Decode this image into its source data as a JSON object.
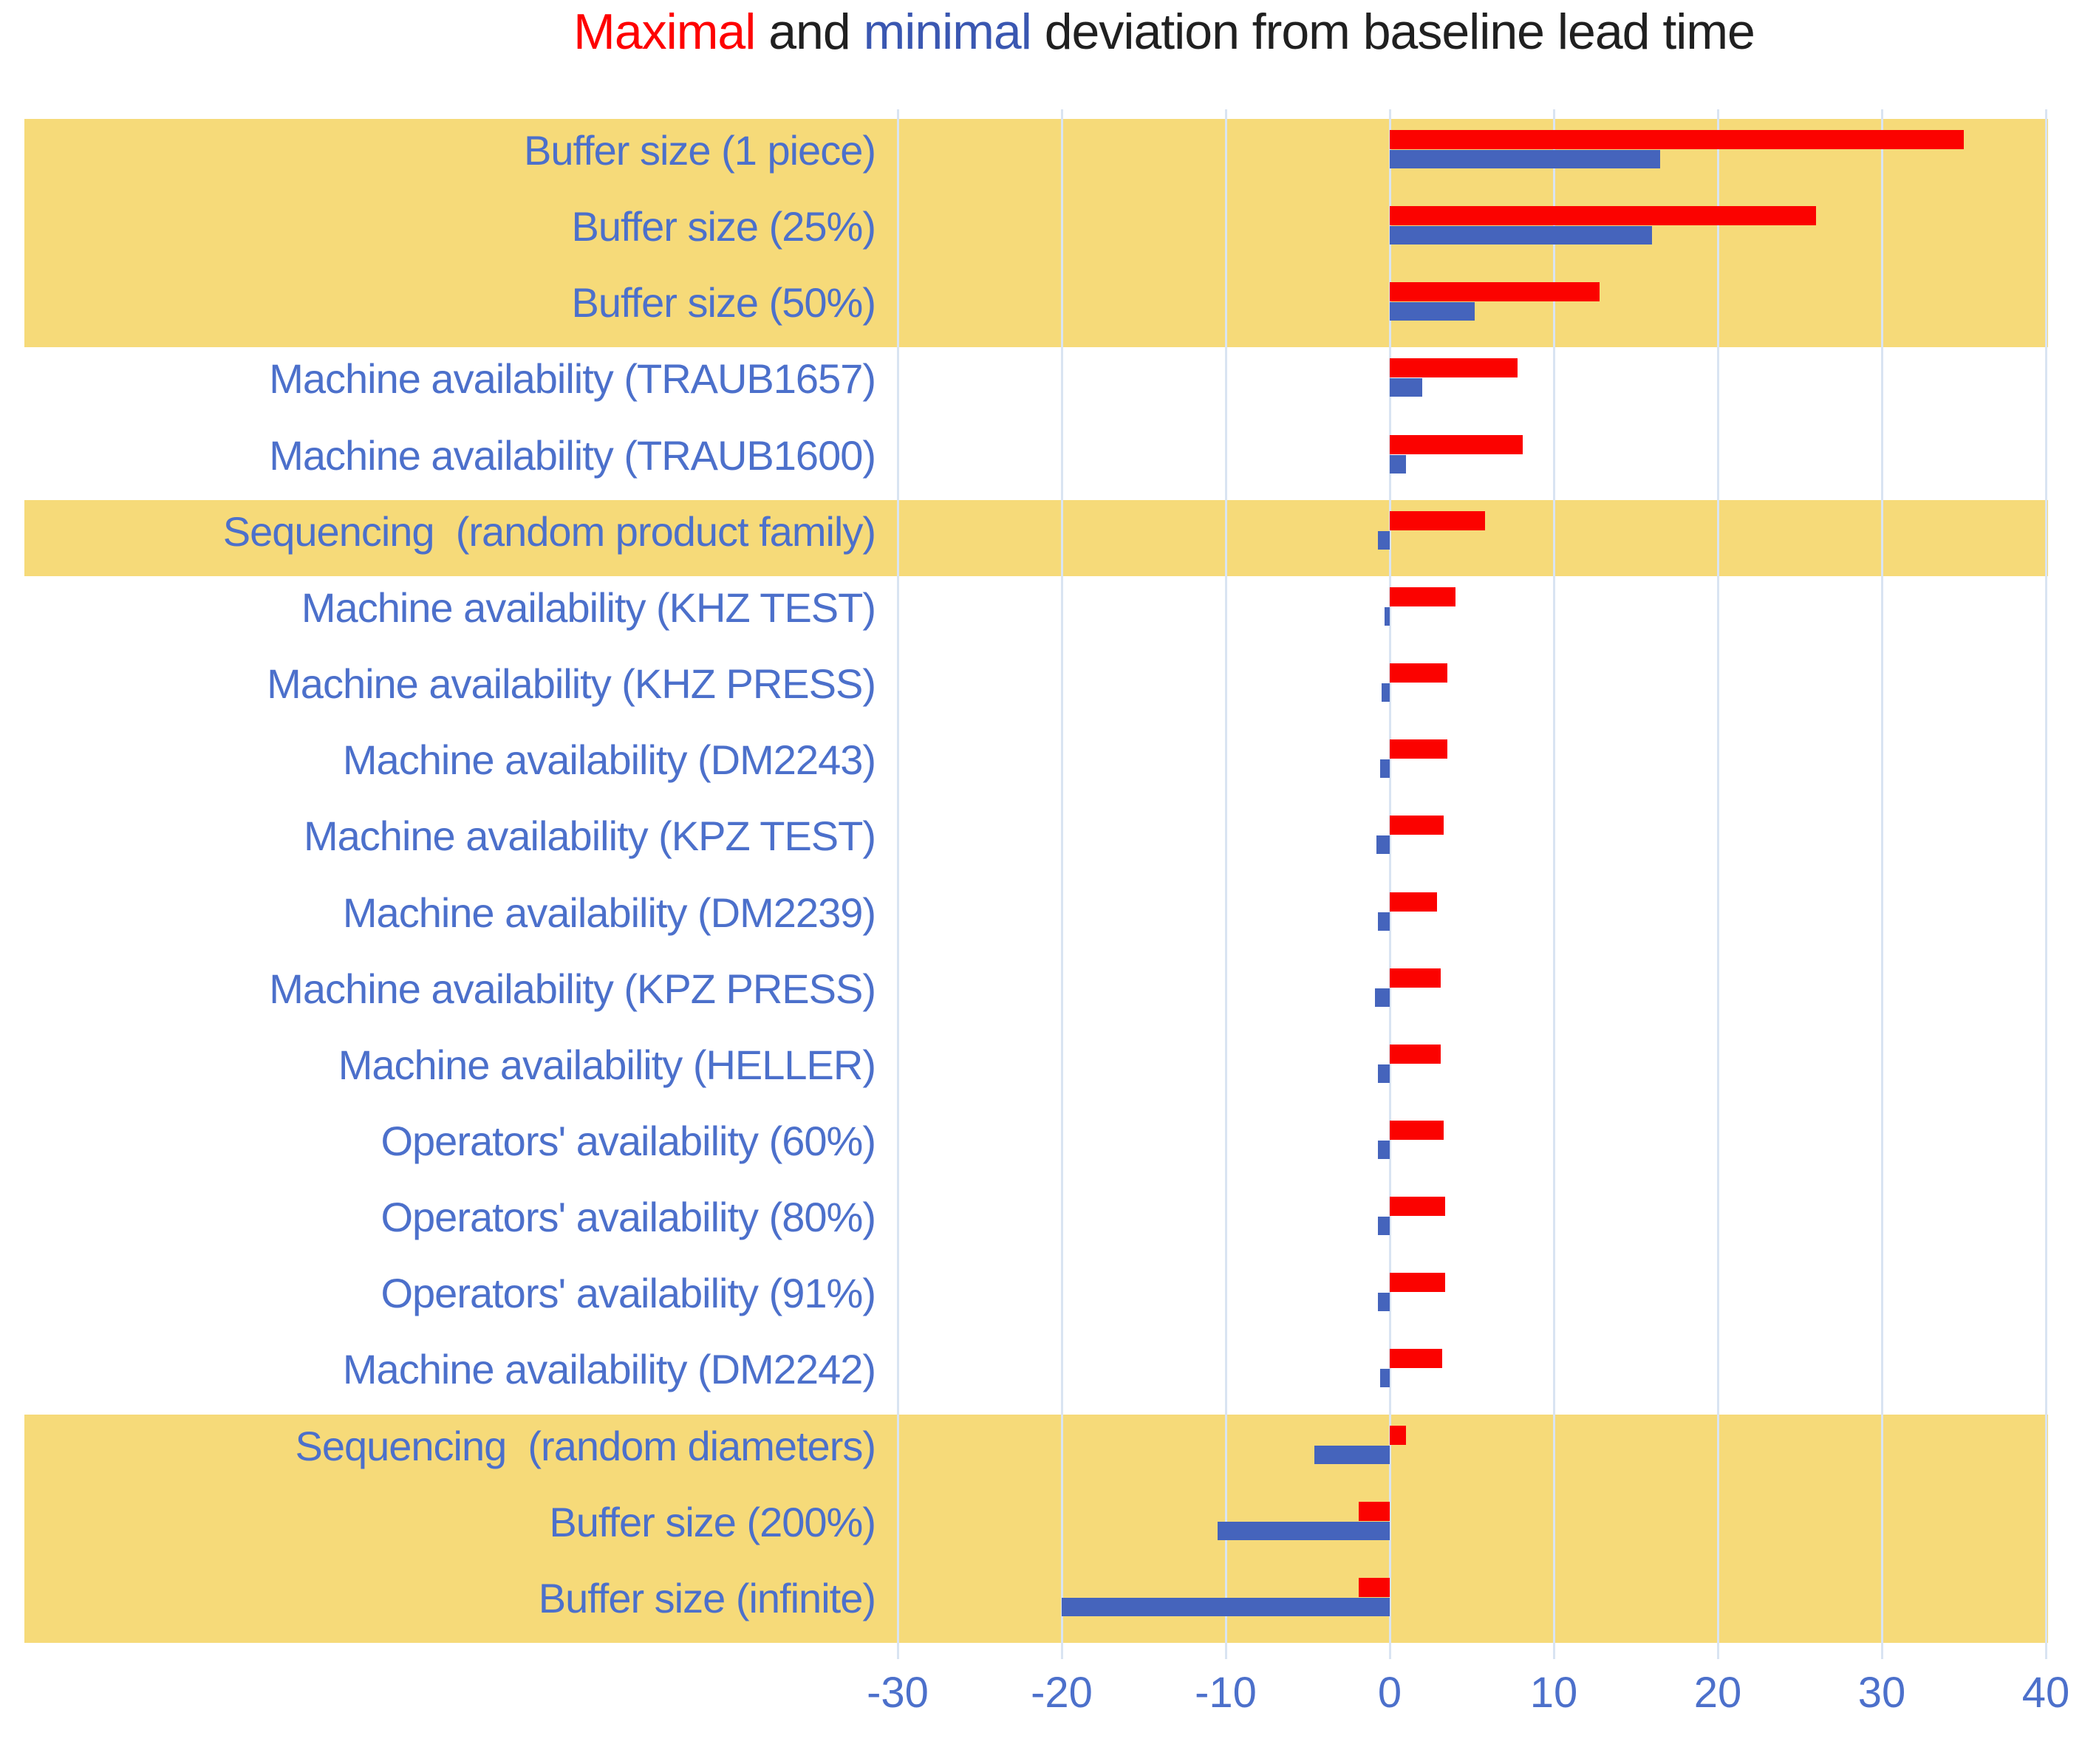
{
  "title": {
    "part_maximal": "Maximal",
    "part_and": " and ",
    "part_minimal": "minimal",
    "part_rest": " deviation from baseline lead time"
  },
  "colors": {
    "maximal_bar": "#fb0200",
    "minimal_bar": "#4564bc",
    "highlight_band": "#f6da79",
    "gridline": "#d9e4f2",
    "category_text": "#4c70cb",
    "axis_text": "#4c70cb",
    "title_maximal": "#fe0000",
    "title_minimal": "#3a57b1",
    "title_text": "#202020"
  },
  "chart_data": {
    "type": "bar",
    "orientation": "horizontal",
    "title": "Maximal and minimal deviation from baseline lead time",
    "xlabel": "",
    "ylabel": "",
    "xlim": [
      -30,
      40
    ],
    "xticks": [
      -30,
      -20,
      -10,
      0,
      10,
      20,
      30,
      40
    ],
    "grid": true,
    "legend_position": "in-title (Maximal = red, minimal = blue)",
    "categories": [
      "Buffer size (1 piece)",
      "Buffer size (25%)",
      "Buffer size (50%)",
      "Machine availability (TRAUB1657)",
      "Machine availability (TRAUB1600)",
      "Sequencing  (random product family)",
      "Machine availability (KHZ TEST)",
      "Machine availability (KHZ PRESS)",
      "Machine availability (DM2243)",
      "Machine availability (KPZ TEST)",
      "Machine availability (DM2239)",
      "Machine availability (KPZ PRESS)",
      "Machine availability (HELLER)",
      "Operators' availability (60%)",
      "Operators' availability (80%)",
      "Operators' availability (91%)",
      "Machine availability (DM2242)",
      "Sequencing  (random diameters)",
      "Buffer size (200%)",
      "Buffer size (infinite)"
    ],
    "series": [
      {
        "name": "Maximal deviation",
        "color": "#fb0200",
        "values": [
          35,
          26,
          12.8,
          7.8,
          8.1,
          5.8,
          4.0,
          3.5,
          3.5,
          3.3,
          2.9,
          3.1,
          3.1,
          3.3,
          3.4,
          3.4,
          3.2,
          1.0,
          -1.9,
          -1.9
        ]
      },
      {
        "name": "Minimal deviation",
        "color": "#4564bc",
        "values": [
          16.5,
          16,
          5.2,
          2.0,
          1.0,
          -0.7,
          -0.3,
          -0.5,
          -0.6,
          -0.8,
          -0.7,
          -0.9,
          -0.7,
          -0.7,
          -0.7,
          -0.7,
          -0.6,
          -4.6,
          -10.5,
          -20
        ]
      }
    ],
    "highlighted_row_groups": [
      [
        0,
        2
      ],
      [
        5,
        5
      ],
      [
        17,
        19
      ]
    ],
    "highlighted_categories": [
      "Buffer size (1 piece)",
      "Buffer size (25%)",
      "Buffer size (50%)",
      "Sequencing  (random product family)",
      "Sequencing  (random diameters)",
      "Buffer size (200%)",
      "Buffer size (infinite)"
    ]
  }
}
